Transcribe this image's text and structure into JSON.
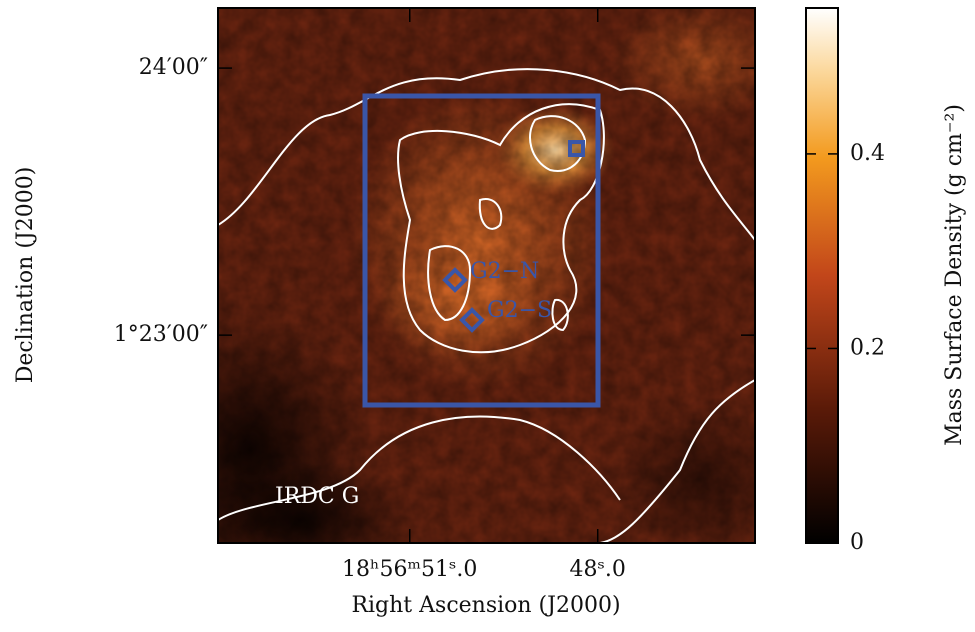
{
  "chart_data": {
    "type": "image",
    "xlabel": "Right Ascension (J2000)",
    "ylabel": "Declination (J2000)",
    "xlim": [
      54.06,
      45.49
    ],
    "xticks": [
      {
        "value": 51.0,
        "label": "18ʰ56ᵐ51ˢ.0"
      },
      {
        "value": 48.0,
        "label": "48ˢ.0"
      }
    ],
    "ylim": [
      -46.7,
      73.5
    ],
    "yticks": [
      {
        "value": 60,
        "label": "24′00″"
      },
      {
        "value": 0,
        "label": "1°23′00″"
      }
    ],
    "colorbar": {
      "label": "Mass Surface Density (g cm⁻²)",
      "lim": [
        0,
        0.55
      ],
      "ticks": [
        0,
        0.2,
        0.4
      ]
    },
    "annotations": [
      "IRDC G",
      "G2−N",
      "G2−S"
    ]
  }
}
